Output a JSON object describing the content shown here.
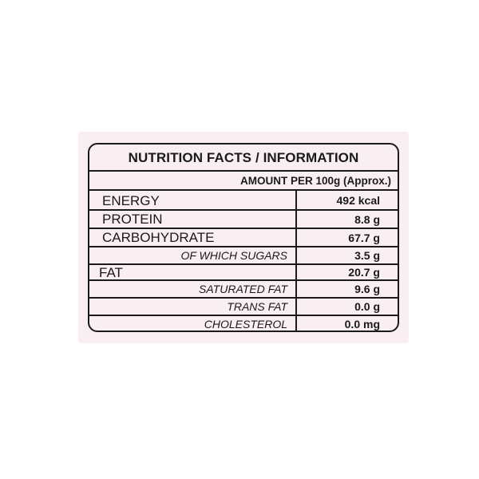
{
  "title": "NUTRITION FACTS / INFORMATION",
  "amount_label": "AMOUNT PER 100g (Approx.)",
  "rows": [
    {
      "label": "ENERGY",
      "value": "492 kcal"
    },
    {
      "label": "PROTEIN",
      "value": "8.8 g"
    },
    {
      "label": "CARBOHYDRATE",
      "value": "67.7 g"
    },
    {
      "label": "OF WHICH SUGARS",
      "value": "3.5 g"
    },
    {
      "label": "FAT",
      "value": "20.7 g"
    },
    {
      "label": "SATURATED FAT",
      "value": "9.6 g"
    },
    {
      "label": "TRANS FAT",
      "value": "0.0 g"
    },
    {
      "label": "CHOLESTEROL",
      "value": "0.0 mg"
    }
  ]
}
